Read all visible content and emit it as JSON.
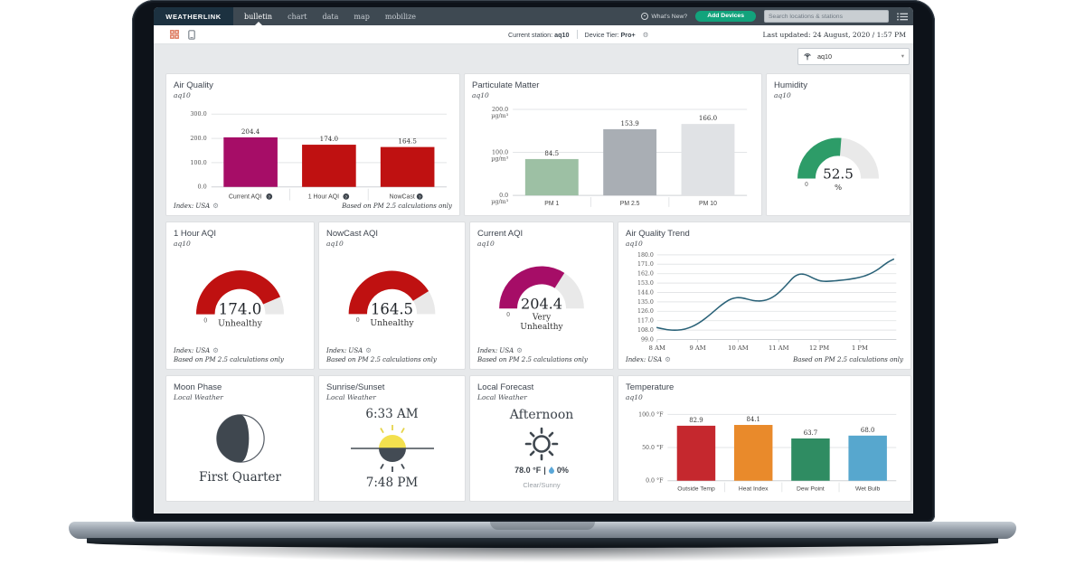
{
  "navbar": {
    "logo": "WEATHERLINK",
    "tabs": [
      {
        "label": "bulletin",
        "active": true
      },
      {
        "label": "chart",
        "active": false
      },
      {
        "label": "data",
        "active": false
      },
      {
        "label": "map",
        "active": false
      },
      {
        "label": "mobilize",
        "active": false
      }
    ],
    "whats_new": "What's New?",
    "add_devices": "Add Devices",
    "search_placeholder": "Search locations & stations"
  },
  "subheader": {
    "current_station_label": "Current station:",
    "current_station_value": "aq10",
    "device_tier_label": "Device Tier:",
    "device_tier_value": "Pro+",
    "last_updated": "Last updated: 24 August, 2020 / 1:57 PM"
  },
  "station_selector": {
    "value": "aq10"
  },
  "cards": {
    "air_quality": {
      "title": "Air Quality",
      "subtitle": "aq10",
      "index": "Index: USA",
      "note": "Based on PM 2.5 calculations only"
    },
    "particulate_matter": {
      "title": "Particulate Matter",
      "subtitle": "aq10"
    },
    "humidity": {
      "title": "Humidity",
      "subtitle": "aq10"
    },
    "one_hour_aqi": {
      "title": "1 Hour AQI",
      "subtitle": "aq10",
      "index": "Index: USA",
      "note": "Based on PM 2.5 calculations only"
    },
    "nowcast_aqi": {
      "title": "NowCast AQI",
      "subtitle": "aq10",
      "index": "Index: USA",
      "note": "Based on PM 2.5 calculations only"
    },
    "current_aqi": {
      "title": "Current AQI",
      "subtitle": "aq10",
      "index": "Index: USA",
      "note": "Based on PM 2.5 calculations only"
    },
    "aqi_trend": {
      "title": "Air Quality Trend",
      "subtitle": "aq10",
      "index": "Index: USA",
      "note": "Based on PM 2.5 calculations only"
    },
    "moon_phase": {
      "title": "Moon Phase",
      "subtitle": "Local Weather",
      "phase": "First Quarter"
    },
    "sunrise_sunset": {
      "title": "Sunrise/Sunset",
      "subtitle": "Local Weather",
      "sunrise": "6:33 AM",
      "sunset": "7:48 PM"
    },
    "local_forecast": {
      "title": "Local Forecast",
      "subtitle": "Local Weather",
      "period": "Afternoon",
      "temperature": "78.0 °F",
      "separator": "|",
      "precip_chance": "0%",
      "condition": "Clear/Sunny"
    },
    "temperature": {
      "title": "Temperature",
      "subtitle": "aq10"
    }
  },
  "chart_data": [
    {
      "id": "air_quality_bars",
      "type": "bar",
      "title": "Air Quality",
      "categories": [
        "Current AQI",
        "1 Hour AQI",
        "NowCast"
      ],
      "values": [
        204.4,
        174.0,
        164.5
      ],
      "labels": [
        "204.4",
        "174.0",
        "164.5"
      ],
      "colors": [
        "#a60d67",
        "#bf1111",
        "#bf1111"
      ],
      "ylim": [
        0,
        300
      ],
      "yticks": [
        {
          "value": 0,
          "label": "0.0"
        },
        {
          "value": 100,
          "label": "100.0"
        },
        {
          "value": 200,
          "label": "200.0"
        },
        {
          "value": 300,
          "label": "300.0"
        }
      ],
      "help_icons": true
    },
    {
      "id": "pm_bars",
      "type": "bar",
      "title": "Particulate Matter",
      "categories": [
        "PM 1",
        "PM 2.5",
        "PM 10"
      ],
      "values": [
        84.5,
        153.9,
        166.0
      ],
      "labels": [
        "84.5",
        "153.9",
        "166.0"
      ],
      "colors": [
        "#9dc0a4",
        "#a9aeb4",
        "#e0e2e5"
      ],
      "ylim": [
        0,
        200
      ],
      "yticks": [
        {
          "value": 0,
          "label": "0.0",
          "unit": "µg/m³"
        },
        {
          "value": 100,
          "label": "100.0",
          "unit": "µg/m³"
        },
        {
          "value": 200,
          "label": "200.0",
          "unit": "µg/m³"
        }
      ],
      "help_icons": false
    },
    {
      "id": "humidity_gauge",
      "type": "gauge",
      "value": 52.5,
      "min": 0,
      "max": 100,
      "display": "52.5",
      "unit": "%",
      "status": [],
      "color": "#2d9c68",
      "track_color": "#e9e9e9",
      "min_label": "0"
    },
    {
      "id": "hour_aqi_gauge",
      "type": "gauge",
      "value": 174.0,
      "min": 0,
      "max": 200,
      "display": "174.0",
      "status": [
        "Unhealthy"
      ],
      "color": "#bf1111",
      "track_color": "#e9e9e9",
      "min_label": "0"
    },
    {
      "id": "nowcast_gauge",
      "type": "gauge",
      "value": 164.5,
      "min": 0,
      "max": 200,
      "display": "164.5",
      "status": [
        "Unhealthy"
      ],
      "color": "#bf1111",
      "track_color": "#e9e9e9",
      "min_label": "0"
    },
    {
      "id": "current_aqi_gauge",
      "type": "gauge",
      "value": 204.4,
      "min": 0,
      "max": 300,
      "display": "204.4",
      "status": [
        "Very",
        "Unhealthy"
      ],
      "color": "#a60d67",
      "track_color": "#e9e9e9",
      "min_label": "0"
    },
    {
      "id": "aqi_trend",
      "type": "line",
      "title": "Air Quality Trend",
      "color": "#2a6278",
      "ylim": [
        99,
        180
      ],
      "yticks": [
        {
          "value": 99,
          "label": "99.0"
        },
        {
          "value": 108,
          "label": "108.0"
        },
        {
          "value": 117,
          "label": "117.0"
        },
        {
          "value": 126,
          "label": "126.0"
        },
        {
          "value": 135,
          "label": "135.0"
        },
        {
          "value": 144,
          "label": "144.0"
        },
        {
          "value": 153,
          "label": "153.0"
        },
        {
          "value": 162,
          "label": "162.0"
        },
        {
          "value": 171,
          "label": "171.0"
        },
        {
          "value": 180,
          "label": "180.0"
        }
      ],
      "xlim": [
        480,
        834
      ],
      "xticks": [
        {
          "value": 480,
          "label": "8 AM"
        },
        {
          "value": 540,
          "label": "9 AM"
        },
        {
          "value": 600,
          "label": "10 AM"
        },
        {
          "value": 660,
          "label": "11 AM"
        },
        {
          "value": 720,
          "label": "12 PM"
        },
        {
          "value": 780,
          "label": "1 PM"
        }
      ],
      "points": [
        [
          480,
          110.4
        ],
        [
          492,
          108.6
        ],
        [
          504,
          107.8
        ],
        [
          516,
          108.2
        ],
        [
          526,
          109.8
        ],
        [
          536,
          112.5
        ],
        [
          546,
          116.5
        ],
        [
          556,
          121.5
        ],
        [
          566,
          127.0
        ],
        [
          576,
          132.5
        ],
        [
          586,
          136.8
        ],
        [
          594,
          138.8
        ],
        [
          602,
          139.2
        ],
        [
          610,
          138.3
        ],
        [
          618,
          136.8
        ],
        [
          626,
          135.9
        ],
        [
          634,
          135.8
        ],
        [
          642,
          136.8
        ],
        [
          650,
          139.0
        ],
        [
          658,
          142.5
        ],
        [
          666,
          147.5
        ],
        [
          674,
          153.0
        ],
        [
          680,
          157.5
        ],
        [
          686,
          160.5
        ],
        [
          692,
          161.7
        ],
        [
          698,
          161.4
        ],
        [
          704,
          160.0
        ],
        [
          710,
          158.0
        ],
        [
          716,
          156.2
        ],
        [
          722,
          155.0
        ],
        [
          728,
          154.6
        ],
        [
          734,
          154.7
        ],
        [
          740,
          155.0
        ],
        [
          746,
          155.3
        ],
        [
          752,
          155.7
        ],
        [
          758,
          156.1
        ],
        [
          764,
          156.6
        ],
        [
          770,
          157.2
        ],
        [
          776,
          157.9
        ],
        [
          782,
          158.8
        ],
        [
          788,
          160.0
        ],
        [
          794,
          161.5
        ],
        [
          800,
          163.4
        ],
        [
          806,
          165.7
        ],
        [
          812,
          168.4
        ],
        [
          818,
          171.4
        ],
        [
          824,
          174.0
        ],
        [
          830,
          175.8
        ]
      ]
    },
    {
      "id": "temperature_bars",
      "type": "bar",
      "title": "Temperature",
      "categories": [
        "Outside Temp",
        "Heat Index",
        "Dew Point",
        "Wet Bulb"
      ],
      "values": [
        82.9,
        84.1,
        63.7,
        68.0
      ],
      "labels": [
        "82.9",
        "84.1",
        "63.7",
        "68.0"
      ],
      "colors": [
        "#c5282e",
        "#e98a2b",
        "#2f8c62",
        "#57a7ce"
      ],
      "ylim": [
        0,
        100
      ],
      "yticks": [
        {
          "value": 0,
          "label": "0.0 °F"
        },
        {
          "value": 50,
          "label": "50.0 °F"
        },
        {
          "value": 100,
          "label": "100.0 °F"
        }
      ],
      "help_icons": false
    }
  ]
}
